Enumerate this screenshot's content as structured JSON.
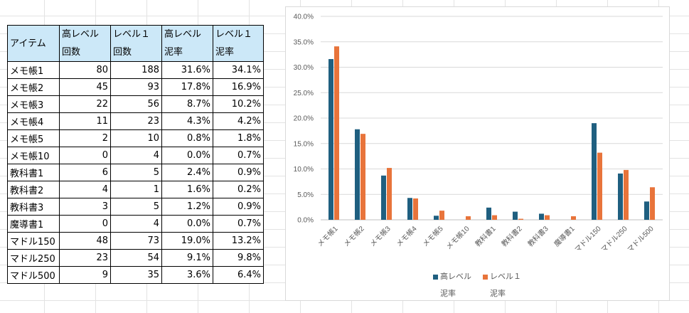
{
  "table": {
    "headers": [
      {
        "line1": "アイテム",
        "line2": ""
      },
      {
        "line1": "高レベル",
        "line2": "回数"
      },
      {
        "line1": "レベル１",
        "line2": "回数"
      },
      {
        "line1": "高レベル",
        "line2": "泥率"
      },
      {
        "line1": "レベル１",
        "line2": "泥率"
      }
    ],
    "rows": [
      {
        "item": "メモ帳1",
        "high_count": "80",
        "lv1_count": "188",
        "high_rate": "31.6%",
        "lv1_rate": "34.1%"
      },
      {
        "item": "メモ帳2",
        "high_count": "45",
        "lv1_count": "93",
        "high_rate": "17.8%",
        "lv1_rate": "16.9%"
      },
      {
        "item": "メモ帳3",
        "high_count": "22",
        "lv1_count": "56",
        "high_rate": "8.7%",
        "lv1_rate": "10.2%"
      },
      {
        "item": "メモ帳4",
        "high_count": "11",
        "lv1_count": "23",
        "high_rate": "4.3%",
        "lv1_rate": "4.2%"
      },
      {
        "item": "メモ帳5",
        "high_count": "2",
        "lv1_count": "10",
        "high_rate": "0.8%",
        "lv1_rate": "1.8%"
      },
      {
        "item": "メモ帳10",
        "high_count": "0",
        "lv1_count": "4",
        "high_rate": "0.0%",
        "lv1_rate": "0.7%"
      },
      {
        "item": "教科書1",
        "high_count": "6",
        "lv1_count": "5",
        "high_rate": "2.4%",
        "lv1_rate": "0.9%"
      },
      {
        "item": "教科書2",
        "high_count": "4",
        "lv1_count": "1",
        "high_rate": "1.6%",
        "lv1_rate": "0.2%"
      },
      {
        "item": "教科書3",
        "high_count": "3",
        "lv1_count": "5",
        "high_rate": "1.2%",
        "lv1_rate": "0.9%"
      },
      {
        "item": "魔導書1",
        "high_count": "0",
        "lv1_count": "4",
        "high_rate": "0.0%",
        "lv1_rate": "0.7%"
      },
      {
        "item": "マドル150",
        "high_count": "48",
        "lv1_count": "73",
        "high_rate": "19.0%",
        "lv1_rate": "13.2%"
      },
      {
        "item": "マドル250",
        "high_count": "23",
        "lv1_count": "54",
        "high_rate": "9.1%",
        "lv1_rate": "9.8%"
      },
      {
        "item": "マドル500",
        "high_count": "9",
        "lv1_count": "35",
        "high_rate": "3.6%",
        "lv1_rate": "6.4%"
      }
    ]
  },
  "chart_data": {
    "type": "bar",
    "title": "",
    "xlabel": "",
    "ylabel": "",
    "categories": [
      "メモ帳1",
      "メモ帳2",
      "メモ帳3",
      "メモ帳4",
      "メモ帳5",
      "メモ帳10",
      "教科書1",
      "教科書2",
      "教科書3",
      "魔導書1",
      "マドル150",
      "マドル250",
      "マドル500"
    ],
    "series": [
      {
        "name_line1": "高レベル",
        "name_line2": "泥率",
        "color": "#1f5f80",
        "values": [
          31.6,
          17.8,
          8.7,
          4.3,
          0.8,
          0.0,
          2.4,
          1.6,
          1.2,
          0.0,
          19.0,
          9.1,
          3.6
        ]
      },
      {
        "name_line1": "レベル１",
        "name_line2": "泥率",
        "color": "#e8743b",
        "values": [
          34.1,
          16.9,
          10.2,
          4.2,
          1.8,
          0.7,
          0.9,
          0.2,
          0.9,
          0.7,
          13.2,
          9.8,
          6.4
        ]
      }
    ],
    "ylim": [
      0,
      40
    ],
    "yticks": [
      "0.0%",
      "5.0%",
      "10.0%",
      "15.0%",
      "20.0%",
      "25.0%",
      "30.0%",
      "35.0%",
      "40.0%"
    ],
    "ytick_values": [
      0,
      5,
      10,
      15,
      20,
      25,
      30,
      35,
      40
    ],
    "grid": true,
    "legend_position": "bottom"
  }
}
